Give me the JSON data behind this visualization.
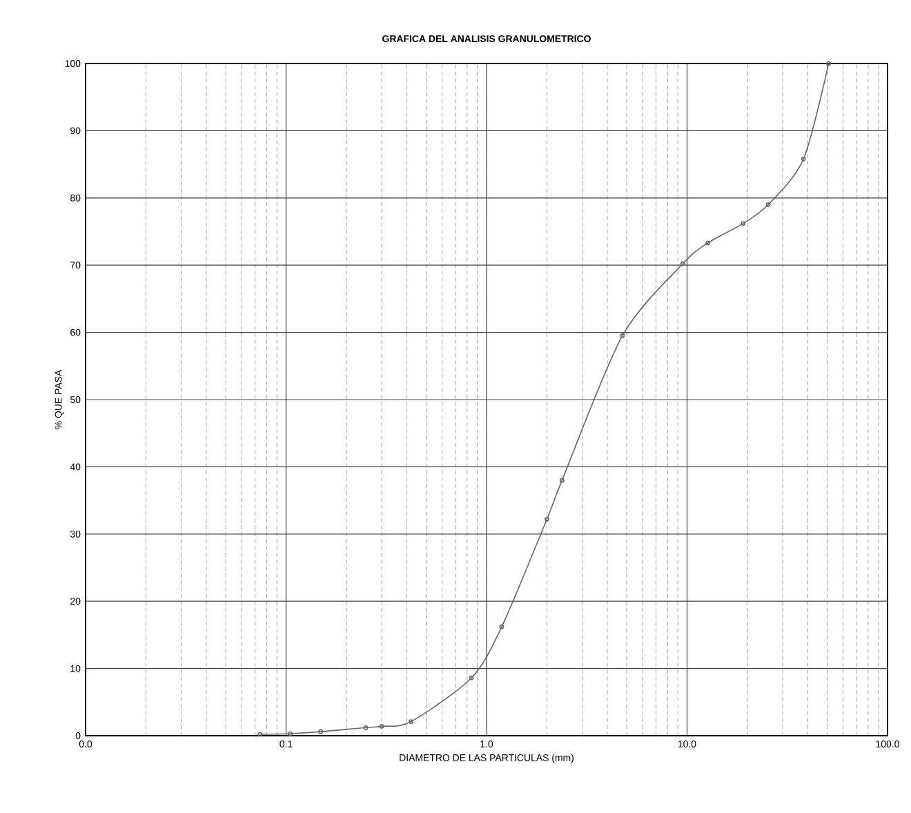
{
  "chart_data": {
    "type": "line",
    "title": "GRAFICA DEL ANALISIS GRANULOMETRICO",
    "xlabel": "DIAMETRO DE LAS PARTICULAS  (mm)",
    "ylabel": "% QUE PASA",
    "log": "x",
    "grid": true,
    "marker": "circle",
    "line_style": "solid",
    "xlim": [
      0.01,
      100
    ],
    "ylim": [
      0,
      100
    ],
    "xticks": [
      {
        "value": 0.01,
        "label": "0.0"
      },
      {
        "value": 0.1,
        "label": "0.1"
      },
      {
        "value": 1,
        "label": "1.0"
      },
      {
        "value": 10,
        "label": "10.0"
      },
      {
        "value": 100,
        "label": "100.0"
      }
    ],
    "yticks": [
      0,
      10,
      20,
      30,
      40,
      50,
      60,
      70,
      80,
      90,
      100
    ],
    "series": [
      {
        "color": "#666666",
        "x": [
          0.074,
          0.105,
          0.149,
          0.25,
          0.3,
          0.42,
          0.84,
          1.19,
          2.0,
          2.38,
          4.76,
          9.52,
          12.7,
          19.05,
          25.4,
          38.1,
          50.8
        ],
        "values": [
          0.2,
          0.3,
          0.6,
          1.2,
          1.4,
          2.1,
          8.6,
          16.2,
          32.2,
          38,
          59.5,
          70.2,
          73.3,
          76.2,
          79,
          85.8,
          100
        ]
      }
    ]
  }
}
